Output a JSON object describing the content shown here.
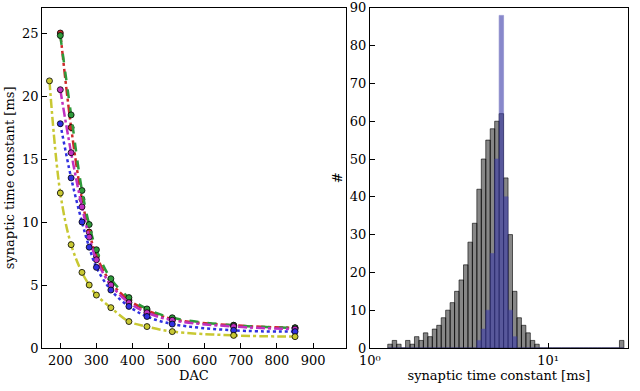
{
  "chart_data": [
    {
      "type": "line",
      "xlabel": "DAC",
      "ylabel": "synaptic time constant [ms]",
      "xlim": [
        150,
        990
      ],
      "xticks": [
        200,
        300,
        400,
        500,
        600,
        700,
        800,
        900
      ],
      "ylim": [
        0,
        27
      ],
      "yticks": [
        0,
        5,
        10,
        15,
        20,
        25
      ],
      "grid": false,
      "marker": "circle",
      "x": [
        170,
        200,
        230,
        260,
        280,
        300,
        340,
        390,
        440,
        510,
        680,
        850
      ],
      "series": [
        {
          "color": "#cc2a2a",
          "line_style": "dashdot",
          "values": [
            null,
            25,
            17.5,
            11.8,
            9.2,
            7.3,
            5.2,
            3.8,
            3.0,
            2.3,
            1.8,
            1.6
          ]
        },
        {
          "color": "#2e9a3a",
          "line_style": "dash",
          "values": [
            null,
            24.8,
            18.5,
            12.5,
            9.8,
            7.8,
            5.5,
            4.0,
            3.1,
            2.4,
            1.8,
            1.6
          ]
        },
        {
          "color": "#c030c0",
          "line_style": "dashdot",
          "values": [
            null,
            20.5,
            15.5,
            11.2,
            8.8,
            7.0,
            5.0,
            3.6,
            2.8,
            2.2,
            1.7,
            1.5
          ]
        },
        {
          "color": "#3030e0",
          "line_style": "dot",
          "values": [
            null,
            17.8,
            13.5,
            10.0,
            8.0,
            6.4,
            4.6,
            3.3,
            2.5,
            1.9,
            1.4,
            1.3
          ]
        },
        {
          "color": "#c8c832",
          "line_style": "dashdot",
          "values": [
            21.2,
            12.3,
            8.2,
            6.0,
            5.0,
            4.2,
            3.2,
            2.1,
            1.7,
            1.3,
            1.0,
            0.9
          ]
        }
      ]
    },
    {
      "type": "histogram",
      "xlabel": "synaptic time constant [ms]",
      "ylabel": "#",
      "log": "x",
      "xlim": [
        1,
        28
      ],
      "xticks": [
        {
          "value": 1,
          "label": "10⁰"
        },
        {
          "value": 10,
          "label": "10¹"
        }
      ],
      "ylim": [
        0,
        90
      ],
      "yticks": [
        0,
        10,
        20,
        30,
        40,
        50,
        60,
        70,
        80,
        90
      ],
      "grid": false,
      "bins": [
        1.259,
        1.334,
        1.413,
        1.496,
        1.585,
        1.679,
        1.778,
        1.884,
        1.995,
        2.113,
        2.239,
        2.371,
        2.512,
        2.661,
        2.818,
        2.985,
        3.162,
        3.35,
        3.548,
        3.758,
        3.981,
        4.217,
        4.467,
        4.732,
        5.012,
        5.309,
        5.623,
        5.957,
        6.31,
        6.683,
        7.079,
        7.499,
        7.943,
        8.414,
        8.913,
        9.441,
        10.0,
        10.59,
        11.22,
        11.89,
        12.59,
        13.34,
        14.13,
        14.96,
        15.85,
        16.79,
        17.78,
        18.84,
        19.95,
        21.13,
        22.39,
        23.71,
        25.12,
        26.61
      ],
      "series": [
        {
          "color": "#888888",
          "values": [
            1,
            2,
            1,
            0,
            2,
            1,
            3,
            2,
            4,
            3,
            5,
            6,
            8,
            10,
            12,
            15,
            18,
            22,
            28,
            33,
            42,
            50,
            55,
            58,
            60,
            62,
            45,
            30,
            15,
            8,
            6,
            4,
            2,
            1,
            0,
            0,
            0,
            0,
            0,
            0,
            0,
            0,
            0,
            0,
            0,
            0,
            0,
            0,
            0,
            0,
            0,
            0,
            2
          ]
        },
        {
          "color": "#3a3aa8",
          "values": [
            0,
            0,
            0,
            0,
            0,
            0,
            0,
            0,
            0,
            0,
            0,
            0,
            0,
            0,
            0,
            0,
            0,
            0,
            0,
            0,
            2,
            5,
            10,
            25,
            50,
            88,
            40,
            10,
            3,
            0,
            0,
            0,
            0,
            0,
            0,
            0,
            0,
            0,
            0,
            0,
            0,
            0,
            0,
            0,
            0,
            0,
            0,
            0,
            0,
            0,
            0,
            0,
            0
          ]
        }
      ]
    }
  ]
}
